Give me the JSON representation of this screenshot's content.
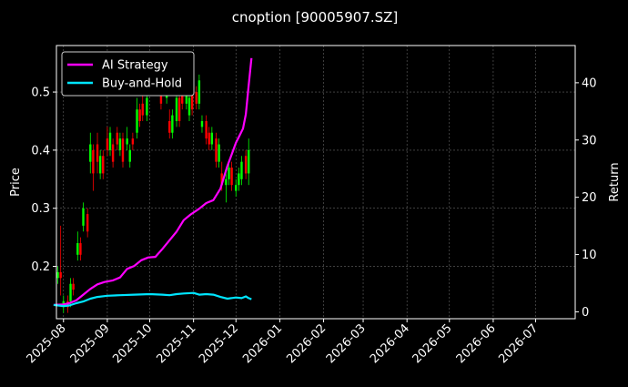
{
  "chart_data": {
    "type": "line",
    "title": "cnoption [90005907.SZ]",
    "ylabel_left": "Price",
    "ylabel_right": "Return",
    "xlim": [
      "2025-07-27",
      "2026-07-29"
    ],
    "ylim_left": [
      0.11,
      0.58
    ],
    "ylim_right": [
      -1.2,
      46.5
    ],
    "x_ticks": [
      "2025-08",
      "2025-09",
      "2025-10",
      "2025-11",
      "2025-12",
      "2026-01",
      "2026-02",
      "2026-03",
      "2026-04",
      "2026-05",
      "2026-06",
      "2026-07"
    ],
    "x_tick_dates": [
      "2025-08-01",
      "2025-09-01",
      "2025-10-01",
      "2025-11-01",
      "2025-12-01",
      "2026-01-01",
      "2026-02-01",
      "2026-03-01",
      "2026-04-01",
      "2026-05-01",
      "2026-06-01",
      "2026-07-01"
    ],
    "y_ticks_left": [
      0.2,
      0.3,
      0.4,
      0.5
    ],
    "y_tick_labels_left": [
      "0.2",
      "0.3",
      "0.4",
      "0.5"
    ],
    "y_ticks_right": [
      0,
      10,
      20,
      30,
      40
    ],
    "grid": true,
    "legend_position": "top-left",
    "up_color": "#00ff00",
    "down_color": "#ff0000",
    "series": [
      {
        "name": "AI Strategy",
        "color": "#ff00ff",
        "axis": "right",
        "dates": [
          "2025-07-25",
          "2025-08-01",
          "2025-08-05",
          "2025-08-10",
          "2025-08-15",
          "2025-08-20",
          "2025-08-25",
          "2025-08-30",
          "2025-09-05",
          "2025-09-10",
          "2025-09-15",
          "2025-09-20",
          "2025-09-25",
          "2025-09-30",
          "2025-10-05",
          "2025-10-10",
          "2025-10-15",
          "2025-10-20",
          "2025-10-25",
          "2025-10-30",
          "2025-11-05",
          "2025-11-10",
          "2025-11-15",
          "2025-11-20",
          "2025-11-25",
          "2025-11-28",
          "2025-12-01",
          "2025-12-04",
          "2025-12-06",
          "2025-12-08",
          "2025-12-10",
          "2025-12-12"
        ],
        "values": [
          1.2,
          1.3,
          1.5,
          2.0,
          3.0,
          4.0,
          4.8,
          5.2,
          5.5,
          6.0,
          7.5,
          8.0,
          9.0,
          9.5,
          9.6,
          11.0,
          12.5,
          14.0,
          16.0,
          17.0,
          18.0,
          19.0,
          19.5,
          21.5,
          25.5,
          27.5,
          29.5,
          31.0,
          32.0,
          34.5,
          39.5,
          44.3
        ]
      },
      {
        "name": "Buy-and-Hold",
        "color": "#00e5ff",
        "axis": "right",
        "dates": [
          "2025-07-25",
          "2025-08-01",
          "2025-08-05",
          "2025-08-10",
          "2025-08-15",
          "2025-08-20",
          "2025-08-25",
          "2025-09-01",
          "2025-09-10",
          "2025-09-20",
          "2025-10-01",
          "2025-10-10",
          "2025-10-15",
          "2025-10-20",
          "2025-10-25",
          "2025-11-01",
          "2025-11-05",
          "2025-11-10",
          "2025-11-15",
          "2025-11-20",
          "2025-11-25",
          "2025-12-01",
          "2025-12-05",
          "2025-12-08",
          "2025-12-10",
          "2025-12-12"
        ],
        "values": [
          1.2,
          1.0,
          1.1,
          1.5,
          1.8,
          2.3,
          2.6,
          2.8,
          2.9,
          3.0,
          3.1,
          3.0,
          2.9,
          3.1,
          3.2,
          3.3,
          3.0,
          3.1,
          3.0,
          2.6,
          2.3,
          2.5,
          2.4,
          2.7,
          2.4,
          2.2
        ]
      }
    ],
    "candlesticks": {
      "axis": "left",
      "dates": [
        "2025-07-28",
        "2025-07-30",
        "2025-08-01",
        "2025-08-04",
        "2025-08-06",
        "2025-08-08",
        "2025-08-11",
        "2025-08-13",
        "2025-08-15",
        "2025-08-18",
        "2025-08-20",
        "2025-08-22",
        "2025-08-25",
        "2025-08-27",
        "2025-08-29",
        "2025-09-01",
        "2025-09-03",
        "2025-09-05",
        "2025-09-08",
        "2025-09-10",
        "2025-09-12",
        "2025-09-15",
        "2025-09-17",
        "2025-09-19",
        "2025-09-22",
        "2025-09-24",
        "2025-09-26",
        "2025-09-29",
        "2025-10-09",
        "2025-10-13",
        "2025-10-15",
        "2025-10-17",
        "2025-10-20",
        "2025-10-22",
        "2025-10-24",
        "2025-10-27",
        "2025-10-29",
        "2025-10-31",
        "2025-11-03",
        "2025-11-05",
        "2025-11-07",
        "2025-11-10",
        "2025-11-12",
        "2025-11-14",
        "2025-11-17",
        "2025-11-19",
        "2025-11-21",
        "2025-11-24",
        "2025-11-26",
        "2025-11-28",
        "2025-12-01",
        "2025-12-03",
        "2025-12-05",
        "2025-12-08",
        "2025-12-10"
      ],
      "open": [
        0.18,
        0.19,
        0.13,
        0.14,
        0.14,
        0.17,
        0.22,
        0.24,
        0.27,
        0.29,
        0.38,
        0.4,
        0.41,
        0.36,
        0.39,
        0.42,
        0.4,
        0.41,
        0.43,
        0.4,
        0.42,
        0.41,
        0.38,
        0.42,
        0.43,
        0.47,
        0.48,
        0.46,
        0.5,
        0.49,
        0.45,
        0.43,
        0.45,
        0.49,
        0.52,
        0.48,
        0.46,
        0.5,
        0.5,
        0.48,
        0.44,
        0.45,
        0.43,
        0.41,
        0.42,
        0.38,
        0.36,
        0.34,
        0.35,
        0.37,
        0.33,
        0.34,
        0.35,
        0.39,
        0.36
      ],
      "close": [
        0.19,
        0.18,
        0.14,
        0.13,
        0.17,
        0.16,
        0.24,
        0.22,
        0.3,
        0.26,
        0.41,
        0.36,
        0.38,
        0.39,
        0.36,
        0.4,
        0.43,
        0.38,
        0.41,
        0.42,
        0.38,
        0.42,
        0.4,
        0.41,
        0.47,
        0.45,
        0.46,
        0.49,
        0.48,
        0.52,
        0.43,
        0.46,
        0.49,
        0.45,
        0.48,
        0.5,
        0.49,
        0.47,
        0.48,
        0.52,
        0.45,
        0.42,
        0.41,
        0.43,
        0.38,
        0.41,
        0.34,
        0.35,
        0.37,
        0.34,
        0.34,
        0.36,
        0.38,
        0.36,
        0.4
      ],
      "high": [
        0.2,
        0.27,
        0.15,
        0.15,
        0.18,
        0.18,
        0.26,
        0.25,
        0.31,
        0.3,
        0.43,
        0.41,
        0.43,
        0.4,
        0.4,
        0.44,
        0.44,
        0.42,
        0.44,
        0.43,
        0.43,
        0.44,
        0.41,
        0.43,
        0.49,
        0.48,
        0.5,
        0.51,
        0.51,
        0.54,
        0.47,
        0.47,
        0.51,
        0.5,
        0.53,
        0.51,
        0.51,
        0.51,
        0.51,
        0.53,
        0.46,
        0.46,
        0.44,
        0.44,
        0.43,
        0.42,
        0.38,
        0.36,
        0.38,
        0.38,
        0.35,
        0.37,
        0.39,
        0.4,
        0.42
      ],
      "low": [
        0.17,
        0.15,
        0.12,
        0.12,
        0.13,
        0.15,
        0.21,
        0.21,
        0.26,
        0.25,
        0.36,
        0.33,
        0.36,
        0.35,
        0.35,
        0.39,
        0.39,
        0.37,
        0.4,
        0.39,
        0.37,
        0.4,
        0.37,
        0.4,
        0.42,
        0.44,
        0.45,
        0.45,
        0.47,
        0.48,
        0.42,
        0.42,
        0.44,
        0.44,
        0.47,
        0.47,
        0.45,
        0.46,
        0.47,
        0.47,
        0.43,
        0.41,
        0.4,
        0.4,
        0.37,
        0.37,
        0.33,
        0.31,
        0.34,
        0.33,
        0.32,
        0.33,
        0.34,
        0.35,
        0.34
      ]
    }
  }
}
